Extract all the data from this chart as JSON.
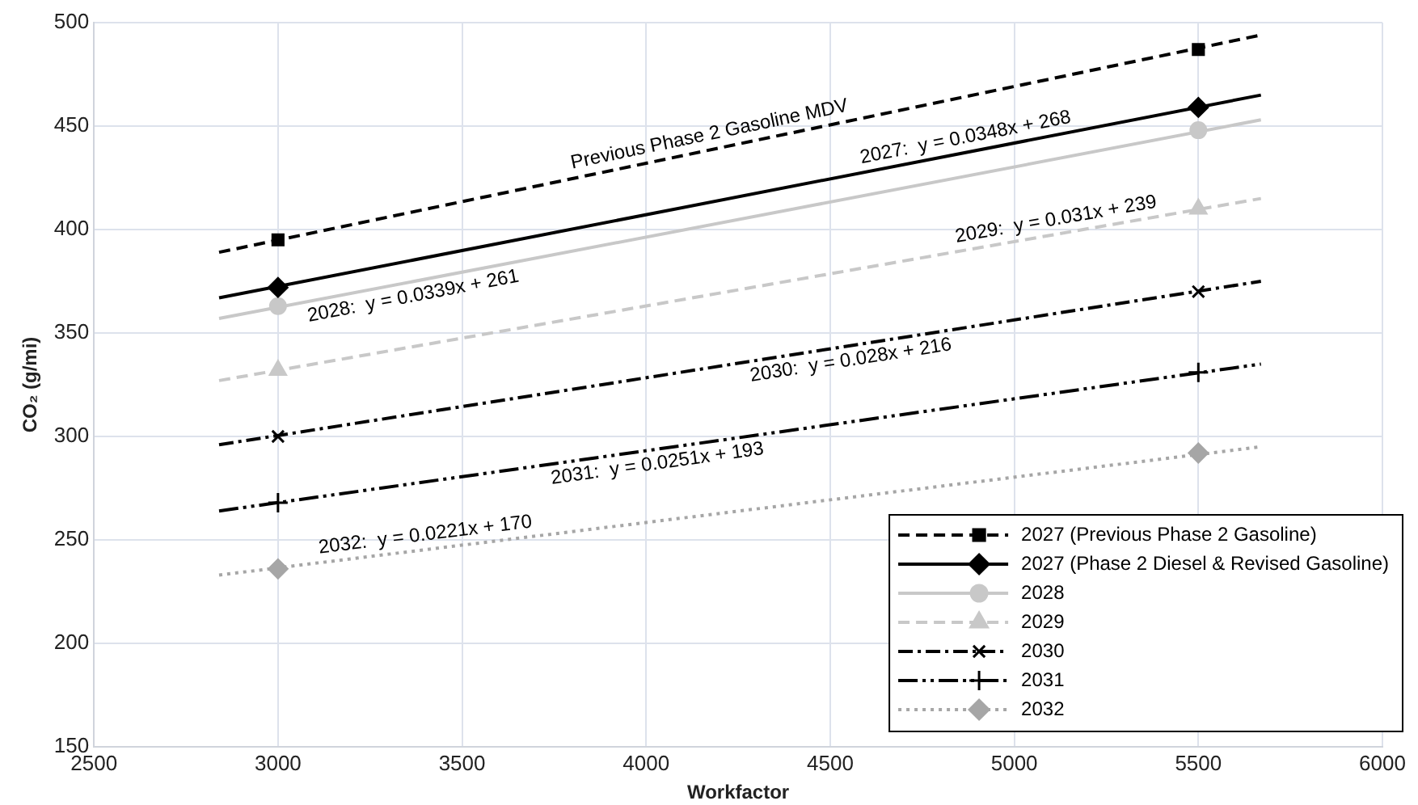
{
  "chart_data": {
    "type": "line",
    "xlabel": "Workfactor",
    "ylabel": "CO₂ (g/mi)",
    "xlim": [
      2500,
      6000
    ],
    "xticks": [
      2500,
      3000,
      3500,
      4000,
      4500,
      5000,
      5500,
      6000
    ],
    "ylim": [
      150,
      500
    ],
    "yticks": [
      150,
      200,
      250,
      300,
      350,
      400,
      450,
      500
    ],
    "grid": true,
    "legend": "bottom right",
    "series": [
      {
        "type": "line",
        "color": "#000000",
        "line_style": "dashed",
        "x": [
          2840,
          5670
        ],
        "values": [
          389,
          494
        ]
      },
      {
        "type": "scatter",
        "name": "2027 (Previous Phase 2 Gasoline)",
        "color": "#000000",
        "marker": "square",
        "line_style": "dashed",
        "x": [
          3000,
          5500
        ],
        "values": [
          395,
          487
        ]
      },
      {
        "type": "line",
        "color": "#000000",
        "line_style": "solid",
        "x": [
          2840,
          5670
        ],
        "values": [
          367,
          465
        ]
      },
      {
        "type": "scatter",
        "name": "2027 (Phase 2 Diesel & Revised Gasoline)",
        "color": "#000000",
        "marker": "diamond",
        "line_style": "solid",
        "x": [
          3000,
          5500
        ],
        "values": [
          372,
          459
        ]
      },
      {
        "type": "line",
        "color": "#c8c8c8",
        "line_style": "solid",
        "x": [
          2840,
          5670
        ],
        "values": [
          357,
          453
        ]
      },
      {
        "type": "scatter",
        "name": "2028",
        "color": "#c8c8c8",
        "marker": "circle",
        "line_style": "solid",
        "x": [
          3000,
          5500
        ],
        "values": [
          363,
          448
        ]
      },
      {
        "type": "line",
        "color": "#c8c8c8",
        "line_style": "dashed",
        "x": [
          2840,
          5670
        ],
        "values": [
          327,
          415
        ]
      },
      {
        "type": "scatter",
        "name": "2029",
        "color": "#c8c8c8",
        "marker": "triangle",
        "line_style": "dashed",
        "x": [
          3000,
          5500
        ],
        "values": [
          332,
          410
        ]
      },
      {
        "type": "line",
        "color": "#000000",
        "line_style": "dashdot",
        "x": [
          2840,
          5670
        ],
        "values": [
          296,
          375
        ]
      },
      {
        "type": "scatter",
        "name": "2030",
        "color": "#000000",
        "marker": "cross",
        "line_style": "dashdot",
        "x": [
          3000,
          5500
        ],
        "values": [
          300,
          370
        ]
      },
      {
        "type": "line",
        "color": "#000000",
        "line_style": "dashdotdot",
        "x": [
          2840,
          5670
        ],
        "values": [
          264,
          335
        ]
      },
      {
        "type": "scatter",
        "name": "2031",
        "color": "#000000",
        "marker": "plus",
        "line_style": "dashdotdot",
        "x": [
          3000,
          5500
        ],
        "values": [
          268,
          331
        ]
      },
      {
        "type": "line",
        "color": "#a6a6a6",
        "line_style": "dotted",
        "x": [
          2840,
          5670
        ],
        "values": [
          233,
          295
        ]
      },
      {
        "type": "scatter",
        "name": "2032",
        "color": "#a6a6a6",
        "marker": "diamond",
        "line_style": "dotted",
        "x": [
          3000,
          5500
        ],
        "values": [
          236,
          292
        ]
      }
    ],
    "annotations": [
      {
        "text": "Previous Phase 2 Gasoline MDV",
        "x": 4180,
        "y": 439
      },
      {
        "text": "2027:  y = 0.0348x + 268",
        "x": 4875,
        "y": 437.5
      },
      {
        "text": "2028:  y = 0.0339x + 261",
        "x": 3360,
        "y": 374.6
      },
      {
        "text": "2029:  y = 0.031x + 239",
        "x": 5120,
        "y": 397.9
      },
      {
        "text": "2030:  y = 0.028x + 216",
        "x": 4550,
        "y": 343.7
      },
      {
        "text": "2031:  y = 0.0251x + 193",
        "x": 4025,
        "y": 293.7
      },
      {
        "text": "2032:  y = 0.0221x + 170",
        "x": 3405,
        "y": 245.4
      }
    ]
  }
}
